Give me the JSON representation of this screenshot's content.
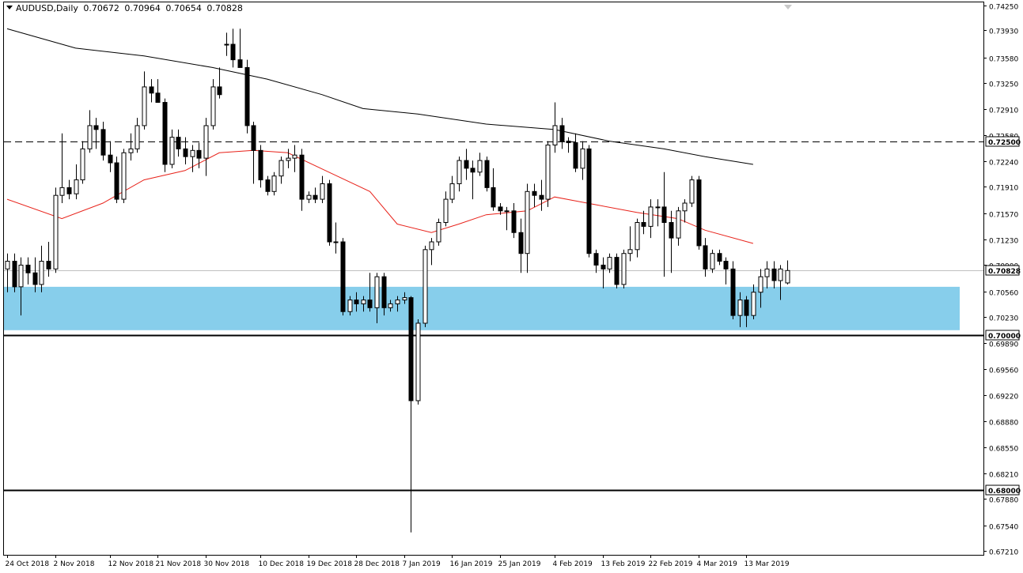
{
  "header": {
    "symbol": "AUDUSD,Daily",
    "open": "0.70672",
    "high": "0.70964",
    "low": "0.70654",
    "close": "0.70828"
  },
  "chart_data": {
    "type": "candlestick",
    "instrument": "AUDUSD",
    "timeframe": "Daily",
    "ylim": [
      0.6712,
      0.7425
    ],
    "y_ticks": [
      "0.74250",
      "0.73930",
      "0.73580",
      "0.73250",
      "0.72910",
      "0.72580",
      "0.72240",
      "0.71910",
      "0.71570",
      "0.71230",
      "0.70900",
      "0.70560",
      "0.70230",
      "0.69890",
      "0.69560",
      "0.69220",
      "0.68880",
      "0.68550",
      "0.68210",
      "0.67880",
      "0.67540",
      "0.67210"
    ],
    "x_labels": [
      {
        "index": 0,
        "label": "24 Oct 2018"
      },
      {
        "index": 7,
        "label": "2 Nov 2018"
      },
      {
        "index": 15,
        "label": "12 Nov 2018"
      },
      {
        "index": 22,
        "label": "21 Nov 2018"
      },
      {
        "index": 29,
        "label": "30 Nov 2018"
      },
      {
        "index": 37,
        "label": "10 Dec 2018"
      },
      {
        "index": 44,
        "label": "19 Dec 2018"
      },
      {
        "index": 51,
        "label": "28 Dec 2018"
      },
      {
        "index": 58,
        "label": "7 Jan 2019"
      },
      {
        "index": 65,
        "label": "16 Jan 2019"
      },
      {
        "index": 72,
        "label": "25 Jan 2019"
      },
      {
        "index": 80,
        "label": "4 Feb 2019"
      },
      {
        "index": 87,
        "label": "13 Feb 2019"
      },
      {
        "index": 94,
        "label": "22 Feb 2019"
      },
      {
        "index": 101,
        "label": "4 Mar 2019"
      },
      {
        "index": 108,
        "label": "13 Mar 2019"
      }
    ],
    "candles": [
      [
        0.7085,
        0.7105,
        0.7055,
        0.7095
      ],
      [
        0.7095,
        0.7105,
        0.7055,
        0.7062
      ],
      [
        0.7062,
        0.71,
        0.7025,
        0.709
      ],
      [
        0.709,
        0.71,
        0.7065,
        0.708
      ],
      [
        0.708,
        0.71,
        0.7055,
        0.7065
      ],
      [
        0.7065,
        0.7115,
        0.7055,
        0.7095
      ],
      [
        0.7095,
        0.712,
        0.7075,
        0.7085
      ],
      [
        0.7085,
        0.719,
        0.708,
        0.718
      ],
      [
        0.718,
        0.726,
        0.717,
        0.719
      ],
      [
        0.719,
        0.72,
        0.7175,
        0.7182
      ],
      [
        0.7182,
        0.722,
        0.7175,
        0.72
      ],
      [
        0.72,
        0.725,
        0.7195,
        0.724
      ],
      [
        0.724,
        0.729,
        0.7235,
        0.727
      ],
      [
        0.727,
        0.728,
        0.724,
        0.7265
      ],
      [
        0.7265,
        0.7275,
        0.7225,
        0.7232
      ],
      [
        0.7232,
        0.725,
        0.721,
        0.7222
      ],
      [
        0.7222,
        0.723,
        0.717,
        0.7175
      ],
      [
        0.7175,
        0.724,
        0.717,
        0.7235
      ],
      [
        0.7235,
        0.726,
        0.7225,
        0.724
      ],
      [
        0.724,
        0.728,
        0.7235,
        0.727
      ],
      [
        0.727,
        0.734,
        0.7265,
        0.732
      ],
      [
        0.732,
        0.733,
        0.73,
        0.7312
      ],
      [
        0.7312,
        0.733,
        0.73,
        0.73
      ],
      [
        0.73,
        0.7305,
        0.721,
        0.722
      ],
      [
        0.722,
        0.7265,
        0.7215,
        0.7255
      ],
      [
        0.7255,
        0.7265,
        0.723,
        0.724
      ],
      [
        0.724,
        0.7255,
        0.722,
        0.723
      ],
      [
        0.723,
        0.7245,
        0.721,
        0.7238
      ],
      [
        0.7238,
        0.7248,
        0.7215,
        0.7228
      ],
      [
        0.7228,
        0.728,
        0.7205,
        0.727
      ],
      [
        0.727,
        0.733,
        0.7265,
        0.732
      ],
      [
        0.732,
        0.7345,
        0.7305,
        0.731
      ],
      [
        0.7375,
        0.739,
        0.736,
        0.7375
      ],
      [
        0.7375,
        0.7395,
        0.7345,
        0.7355
      ],
      [
        0.7355,
        0.7395,
        0.7345,
        0.7345
      ],
      [
        0.7345,
        0.7355,
        0.726,
        0.727
      ],
      [
        0.727,
        0.7275,
        0.7195,
        0.7238
      ],
      [
        0.7238,
        0.7245,
        0.719,
        0.72
      ],
      [
        0.72,
        0.7205,
        0.718,
        0.7185
      ],
      [
        0.7185,
        0.721,
        0.718,
        0.7205
      ],
      [
        0.7205,
        0.723,
        0.7195,
        0.7225
      ],
      [
        0.7225,
        0.724,
        0.7215,
        0.7228
      ],
      [
        0.7228,
        0.7245,
        0.721,
        0.7232
      ],
      [
        0.7232,
        0.724,
        0.716,
        0.7175
      ],
      [
        0.7175,
        0.7185,
        0.717,
        0.718
      ],
      [
        0.718,
        0.719,
        0.717,
        0.7175
      ],
      [
        0.7175,
        0.7205,
        0.717,
        0.7195
      ],
      [
        0.7195,
        0.72,
        0.7115,
        0.712
      ],
      [
        0.712,
        0.7145,
        0.7105,
        0.712
      ],
      [
        0.712,
        0.7125,
        0.7025,
        0.703
      ],
      [
        0.703,
        0.705,
        0.7025,
        0.7045
      ],
      [
        0.7045,
        0.7055,
        0.703,
        0.704
      ],
      [
        0.704,
        0.705,
        0.703,
        0.7045
      ],
      [
        0.7045,
        0.708,
        0.703,
        0.7035
      ],
      [
        0.7035,
        0.708,
        0.7015,
        0.7075
      ],
      [
        0.7075,
        0.708,
        0.7025,
        0.7035
      ],
      [
        0.7035,
        0.7045,
        0.703,
        0.704
      ],
      [
        0.704,
        0.705,
        0.703,
        0.7045
      ],
      [
        0.7045,
        0.7055,
        0.704,
        0.7048
      ],
      [
        0.7048,
        0.705,
        0.6745,
        0.6915
      ],
      [
        0.6915,
        0.702,
        0.691,
        0.7015
      ],
      [
        0.7015,
        0.7115,
        0.701,
        0.711
      ],
      [
        0.711,
        0.7125,
        0.709,
        0.712
      ],
      [
        0.712,
        0.715,
        0.7115,
        0.7145
      ],
      [
        0.7145,
        0.7185,
        0.714,
        0.7175
      ],
      [
        0.7175,
        0.7205,
        0.717,
        0.7195
      ],
      [
        0.7195,
        0.723,
        0.7185,
        0.7225
      ],
      [
        0.7225,
        0.724,
        0.72,
        0.7215
      ],
      [
        0.7215,
        0.7225,
        0.7175,
        0.721
      ],
      [
        0.721,
        0.7235,
        0.7205,
        0.7225
      ],
      [
        0.7225,
        0.723,
        0.7185,
        0.719
      ],
      [
        0.719,
        0.7215,
        0.716,
        0.7165
      ],
      [
        0.7165,
        0.717,
        0.7155,
        0.716
      ],
      [
        0.716,
        0.7165,
        0.7135,
        0.716
      ],
      [
        0.716,
        0.717,
        0.7125,
        0.7132
      ],
      [
        0.7132,
        0.715,
        0.708,
        0.7105
      ],
      [
        0.7105,
        0.7195,
        0.708,
        0.7185
      ],
      [
        0.7185,
        0.7195,
        0.7165,
        0.718
      ],
      [
        0.718,
        0.72,
        0.716,
        0.7175
      ],
      [
        0.7175,
        0.725,
        0.7165,
        0.7245
      ],
      [
        0.7245,
        0.73,
        0.7235,
        0.727
      ],
      [
        0.727,
        0.728,
        0.724,
        0.725
      ],
      [
        0.725,
        0.7255,
        0.7235,
        0.7248
      ],
      [
        0.7248,
        0.726,
        0.721,
        0.7215
      ],
      [
        0.7215,
        0.725,
        0.72,
        0.724
      ],
      [
        0.724,
        0.7245,
        0.71,
        0.7105
      ],
      [
        0.7105,
        0.711,
        0.708,
        0.709
      ],
      [
        0.709,
        0.71,
        0.706,
        0.7085
      ],
      [
        0.7085,
        0.7105,
        0.708,
        0.71
      ],
      [
        0.71,
        0.7105,
        0.706,
        0.7065
      ],
      [
        0.7065,
        0.711,
        0.706,
        0.7105
      ],
      [
        0.7105,
        0.714,
        0.7095,
        0.711
      ],
      [
        0.711,
        0.715,
        0.71,
        0.7145
      ],
      [
        0.7145,
        0.716,
        0.713,
        0.714
      ],
      [
        0.714,
        0.7175,
        0.7125,
        0.7165
      ],
      [
        0.7165,
        0.7175,
        0.714,
        0.7165
      ],
      [
        0.7165,
        0.721,
        0.7075,
        0.7145
      ],
      [
        0.7145,
        0.716,
        0.708,
        0.7125
      ],
      [
        0.7125,
        0.7165,
        0.7115,
        0.716
      ],
      [
        0.716,
        0.7175,
        0.7145,
        0.717
      ],
      [
        0.717,
        0.7205,
        0.7165,
        0.72
      ],
      [
        0.72,
        0.7205,
        0.711,
        0.7115
      ],
      [
        0.7115,
        0.7125,
        0.7075,
        0.7085
      ],
      [
        0.7085,
        0.711,
        0.708,
        0.7105
      ],
      [
        0.7105,
        0.711,
        0.709,
        0.7095
      ],
      [
        0.7095,
        0.71,
        0.7065,
        0.7085
      ],
      [
        0.7085,
        0.7095,
        0.702,
        0.7025
      ],
      [
        0.7025,
        0.7055,
        0.701,
        0.7045
      ],
      [
        0.7045,
        0.705,
        0.701,
        0.7025
      ],
      [
        0.7025,
        0.7065,
        0.702,
        0.7055
      ],
      [
        0.7055,
        0.7085,
        0.7035,
        0.7075
      ],
      [
        0.7075,
        0.7095,
        0.706,
        0.7085
      ],
      [
        0.7085,
        0.7095,
        0.706,
        0.707
      ],
      [
        0.707,
        0.709,
        0.7045,
        0.7085
      ],
      [
        0.7067,
        0.7096,
        0.7065,
        0.7083
      ]
    ],
    "moving_averages": [
      {
        "color": "#e8221a",
        "points": [
          [
            0,
            0.7175
          ],
          [
            8,
            0.715
          ],
          [
            14,
            0.717
          ],
          [
            20,
            0.72
          ],
          [
            26,
            0.7212
          ],
          [
            31,
            0.7235
          ],
          [
            36,
            0.7238
          ],
          [
            41,
            0.7235
          ],
          [
            47,
            0.721
          ],
          [
            53,
            0.7185
          ],
          [
            57,
            0.7143
          ],
          [
            62,
            0.7132
          ],
          [
            66,
            0.7143
          ],
          [
            70,
            0.7155
          ],
          [
            76,
            0.716
          ],
          [
            80,
            0.7178
          ],
          [
            86,
            0.7168
          ],
          [
            92,
            0.7158
          ],
          [
            98,
            0.715
          ],
          [
            102,
            0.7135
          ],
          [
            109,
            0.7118
          ]
        ]
      },
      {
        "color": "#000000",
        "points": [
          [
            0,
            0.7395
          ],
          [
            10,
            0.737
          ],
          [
            20,
            0.736
          ],
          [
            30,
            0.7345
          ],
          [
            38,
            0.733
          ],
          [
            46,
            0.731
          ],
          [
            52,
            0.7292
          ],
          [
            60,
            0.7285
          ],
          [
            70,
            0.7272
          ],
          [
            80,
            0.7265
          ],
          [
            88,
            0.725
          ],
          [
            96,
            0.724
          ],
          [
            102,
            0.723
          ],
          [
            109,
            0.722
          ]
        ]
      }
    ],
    "horizontal_lines": [
      {
        "price": 0.725,
        "label": "0.72500",
        "style": "dashed"
      },
      {
        "price": 0.7,
        "label": "0.70000",
        "style": "solid"
      },
      {
        "price": 0.68,
        "label": "0.68000",
        "style": "solid"
      }
    ],
    "current_price": {
      "price": 0.70828,
      "label": "0.70828"
    },
    "support_zone": {
      "from": 0.7006,
      "to": 0.7062,
      "color": "#87ceeb"
    },
    "grid": false,
    "legend": "none",
    "colors": {
      "bull": "#ffffff",
      "bear": "#000000",
      "outline": "#000000",
      "background": "#ffffff"
    }
  }
}
